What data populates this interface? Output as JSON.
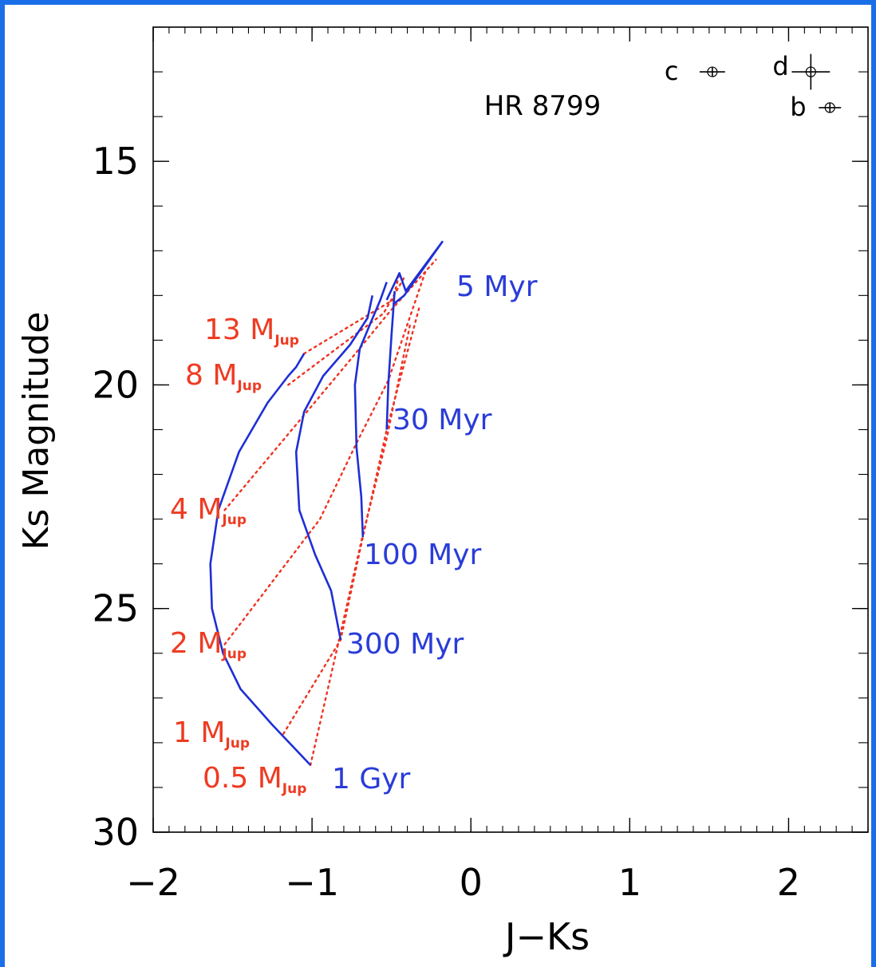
{
  "chart_data": {
    "type": "line",
    "title": "HR 8799",
    "xlabel": "J−Ks",
    "ylabel": "Ks Magnitude",
    "xlim": [
      -2,
      2.5
    ],
    "ylim": [
      30,
      12
    ],
    "y_inverted": true,
    "x_ticks": [
      -2,
      -1,
      0,
      1,
      2
    ],
    "x_tick_labels": [
      "−2",
      "−1",
      "0",
      "1",
      "2"
    ],
    "y_ticks": [
      15,
      20,
      25,
      30
    ],
    "y_tick_labels": [
      "15",
      "20",
      "25",
      "30"
    ],
    "colors": {
      "isochrone": "#1e2fd6",
      "mass_track": "#ee3322",
      "label_blue": "#2a3cd8",
      "label_red": "#ee3b22",
      "frame": "#1a6ee8"
    },
    "isochrones": [
      {
        "name": "5 Myr",
        "label": "5 Myr",
        "x": [
          -0.49,
          -0.42,
          -0.18,
          -0.41,
          -0.45,
          -0.53
        ],
        "y": [
          18.2,
          18.0,
          16.8,
          17.9,
          17.5,
          18.1
        ]
      },
      {
        "name": "30 Myr",
        "label": "30 Myr",
        "x": [
          -0.53,
          -0.52,
          -0.5,
          -0.48
        ],
        "y": [
          21.0,
          20.0,
          18.9,
          17.9
        ]
      },
      {
        "name": "100 Myr",
        "label": "100 Myr",
        "x": [
          -0.68,
          -0.69,
          -0.72,
          -0.73,
          -0.7,
          -0.63,
          -0.57,
          -0.53
        ],
        "y": [
          23.4,
          22.5,
          21.4,
          20.0,
          19.2,
          18.6,
          18.1,
          17.7
        ]
      },
      {
        "name": "300 Myr",
        "label": "300 Myr",
        "x": [
          -0.82,
          -0.88,
          -0.98,
          -1.08,
          -1.1,
          -1.05,
          -0.93,
          -0.76,
          -0.65,
          -0.62
        ],
        "y": [
          25.7,
          24.6,
          23.8,
          22.8,
          21.5,
          20.6,
          19.8,
          19.1,
          18.5,
          18.0
        ]
      },
      {
        "name": "1 Gyr",
        "label": "1 Gyr",
        "x": [
          -1.01,
          -1.25,
          -1.45,
          -1.56,
          -1.63,
          -1.64,
          -1.59,
          -1.46,
          -1.28,
          -1.15,
          -1.1,
          -1.05
        ],
        "y": [
          28.5,
          27.6,
          26.8,
          26.0,
          25.0,
          24.0,
          22.8,
          21.5,
          20.4,
          19.8,
          19.6,
          19.3
        ]
      }
    ],
    "mass_tracks": [
      {
        "label": "13 M",
        "sub": "Jup",
        "x": [
          -1.05,
          -0.49,
          -0.45
        ],
        "y": [
          19.3,
          18.1,
          17.5
        ]
      },
      {
        "label": "8 M",
        "sub": "Jup",
        "x": [
          -1.15,
          -0.55,
          -0.42
        ],
        "y": [
          20.0,
          18.4,
          17.6
        ]
      },
      {
        "label": "4 M",
        "sub": "Jup",
        "x": [
          -1.55,
          -0.75,
          -0.52,
          -0.22
        ],
        "y": [
          22.8,
          19.4,
          18.4,
          17.2
        ]
      },
      {
        "label": "2 M",
        "sub": "Jup",
        "x": [
          -1.55,
          -0.95,
          -0.72,
          -0.52,
          -0.28
        ],
        "y": [
          25.8,
          23.0,
          21.3,
          19.9,
          17.4
        ]
      },
      {
        "label": "1 M",
        "sub": "Jup",
        "x": [
          -1.18,
          -0.82,
          -0.68,
          -0.53,
          -0.32
        ],
        "y": [
          27.8,
          25.7,
          23.4,
          21.0,
          18.2
        ]
      },
      {
        "label": "0.5 M",
        "sub": "Jup",
        "x": [
          -1.01,
          -0.83,
          -0.69,
          -0.53,
          -0.38
        ],
        "y": [
          28.5,
          25.7,
          23.5,
          21.2,
          18.6
        ]
      }
    ],
    "planets": [
      {
        "label": "c",
        "x": 1.52,
        "y": 13.0,
        "xerr": 0.08,
        "yerr": 0.1
      },
      {
        "label": "d",
        "x": 2.14,
        "y": 13.0,
        "xerr": 0.12,
        "yerr": 0.4
      },
      {
        "label": "b",
        "x": 2.26,
        "y": 13.8,
        "xerr": 0.07,
        "yerr": 0.1
      }
    ]
  }
}
